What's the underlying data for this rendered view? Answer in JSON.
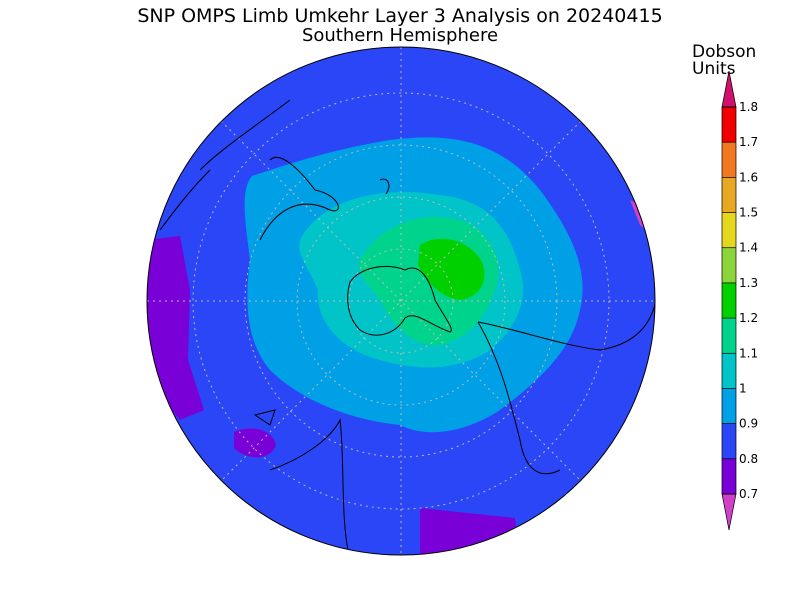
{
  "title": "SNP OMPS Limb Umkehr Layer 3 Analysis on 20240415",
  "subtitle": "Southern Hemisphere",
  "colorbar": {
    "unit_label": [
      "Dobson",
      "Units"
    ],
    "ticks": [
      0.7,
      0.8,
      0.9,
      1,
      1.1,
      1.2,
      1.3,
      1.4,
      1.5,
      1.6,
      1.7,
      1.8
    ],
    "colors": [
      "#7a00d8",
      "#2a46f6",
      "#00a0e6",
      "#00c4c8",
      "#00d48c",
      "#00d000",
      "#8cd43c",
      "#e4d81c",
      "#e8a824",
      "#f07820",
      "#f00000"
    ],
    "under_color": "#d040c8",
    "over_color": "#d0106c"
  }
}
